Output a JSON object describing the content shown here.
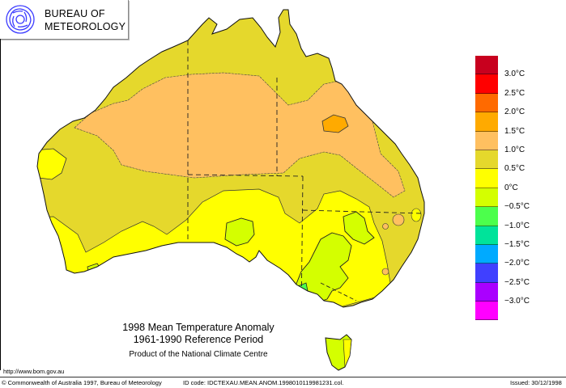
{
  "logo": {
    "line1": "BUREAU OF",
    "line2": "METEOROLOGY",
    "icon": "bom-swirl-icon",
    "icon_color": "#3a3aff"
  },
  "titles": {
    "title": "1998 Mean Temperature Anomaly",
    "subtitle": "1961-1990 Reference Period",
    "product": "Product of the National Climate Centre"
  },
  "footer": {
    "url": "http://www.bom.gov.au",
    "copyright": "© Commonwealth of Australia 1997, Bureau of Meteorology",
    "id_code": "ID code: IDCTEXAU.MEAN.ANOM.19980101199812​31.col.",
    "issued": "Issued: 30/12/1998"
  },
  "legend": {
    "colors": [
      "#c8001e",
      "#ff0000",
      "#ff6a00",
      "#ffaa00",
      "#ffc060",
      "#e5d82c",
      "#ffff00",
      "#d4ff00",
      "#4cff4c",
      "#00e39a",
      "#00aaff",
      "#4040ff",
      "#aa00ff",
      "#ff00ff"
    ],
    "labels": [
      "3.0°C",
      "2.5°C",
      "2.0°C",
      "1.5°C",
      "1.0°C",
      "0.5°C",
      "0°C",
      "−0.5°C",
      "−1.0°C",
      "−1.5°C",
      "−2.0°C",
      "−2.5°C",
      "−3.0°C"
    ]
  },
  "map": {
    "region": "Australia",
    "variable": "Mean temperature anomaly",
    "zone_colors": {
      "plus_1_to_1_5": "#ffc060",
      "plus_0_5_to_1": "#e5d82c",
      "zero_to_plus_0_5": "#ffff00",
      "minus_0_5_to_zero": "#d4ff00",
      "plus_1_5_to_2": "#ffaa00",
      "minus_1_to_minus_0_5": "#4cff4c"
    }
  }
}
